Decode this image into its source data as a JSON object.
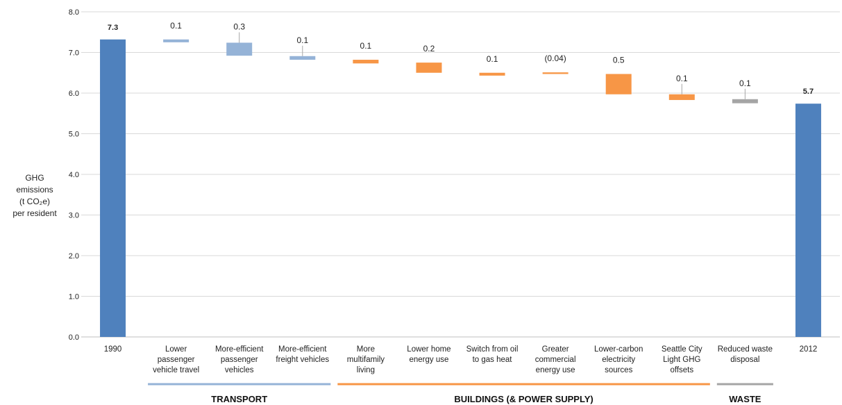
{
  "chart_data": {
    "type": "bar",
    "subtype": "waterfall",
    "title": "",
    "ylabel_lines": [
      "GHG",
      "emissions",
      "(t CO₂e)",
      "per resident"
    ],
    "ylim": [
      0,
      8
    ],
    "yticks": [
      "0.0",
      "1.0",
      "2.0",
      "3.0",
      "4.0",
      "5.0",
      "6.0",
      "7.0",
      "8.0"
    ],
    "grid": true,
    "categories": [
      [
        "1990"
      ],
      [
        "Lower",
        "passenger",
        "vehicle travel"
      ],
      [
        "More-efficient",
        "passenger",
        "vehicles"
      ],
      [
        "More-efficient",
        "freight vehicles"
      ],
      [
        "More",
        "multifamily",
        "living"
      ],
      [
        "Lower home",
        "energy use"
      ],
      [
        "Switch from oil",
        "to gas heat"
      ],
      [
        "Greater",
        "commercial",
        "energy use"
      ],
      [
        "Lower-carbon",
        "electricity",
        "sources"
      ],
      [
        "Seattle City",
        "Light GHG",
        "offsets"
      ],
      [
        "Reduced waste",
        "disposal"
      ],
      [
        "2012"
      ]
    ],
    "bars": [
      {
        "label": "7.3",
        "bottom": 0,
        "top": 7.32,
        "color": "#4f81bd",
        "bold": true,
        "group": "total"
      },
      {
        "label": "0.1",
        "bottom": 7.25,
        "top": 7.32,
        "color": "#95b3d7",
        "bold": false,
        "group": "TRANSPORT"
      },
      {
        "label": "0.3",
        "bottom": 6.92,
        "top": 7.24,
        "color": "#95b3d7",
        "bold": false,
        "group": "TRANSPORT"
      },
      {
        "label": "0.1",
        "bottom": 6.82,
        "top": 6.91,
        "color": "#95b3d7",
        "bold": false,
        "group": "TRANSPORT"
      },
      {
        "label": "0.1",
        "bottom": 6.73,
        "top": 6.82,
        "color": "#f79646",
        "bold": false,
        "group": "BUILDINGS"
      },
      {
        "label": "0.2",
        "bottom": 6.5,
        "top": 6.75,
        "color": "#f79646",
        "bold": false,
        "group": "BUILDINGS"
      },
      {
        "label": "0.1",
        "bottom": 6.43,
        "top": 6.5,
        "color": "#f79646",
        "bold": false,
        "group": "BUILDINGS"
      },
      {
        "label": "(0.04)",
        "bottom": 6.47,
        "top": 6.51,
        "color": "#f79646",
        "bold": false,
        "group": "BUILDINGS"
      },
      {
        "label": "0.5",
        "bottom": 5.97,
        "top": 6.47,
        "color": "#f79646",
        "bold": false,
        "group": "BUILDINGS"
      },
      {
        "label": "0.1",
        "bottom": 5.83,
        "top": 5.97,
        "color": "#f79646",
        "bold": false,
        "group": "BUILDINGS"
      },
      {
        "label": "0.1",
        "bottom": 5.75,
        "top": 5.85,
        "color": "#a5a5a5",
        "bold": false,
        "group": "WASTE"
      },
      {
        "label": "5.7",
        "bottom": 0,
        "top": 5.74,
        "color": "#4f81bd",
        "bold": true,
        "group": "total"
      }
    ],
    "groups": [
      {
        "name": "TRANSPORT",
        "from": 1,
        "to": 3,
        "color": "#95b3d7"
      },
      {
        "name": "BUILDINGS (& POWER SUPPLY)",
        "from": 4,
        "to": 9,
        "color": "#f79646"
      },
      {
        "name": "WASTE",
        "from": 10,
        "to": 10,
        "color": "#a5a5a5"
      }
    ]
  }
}
